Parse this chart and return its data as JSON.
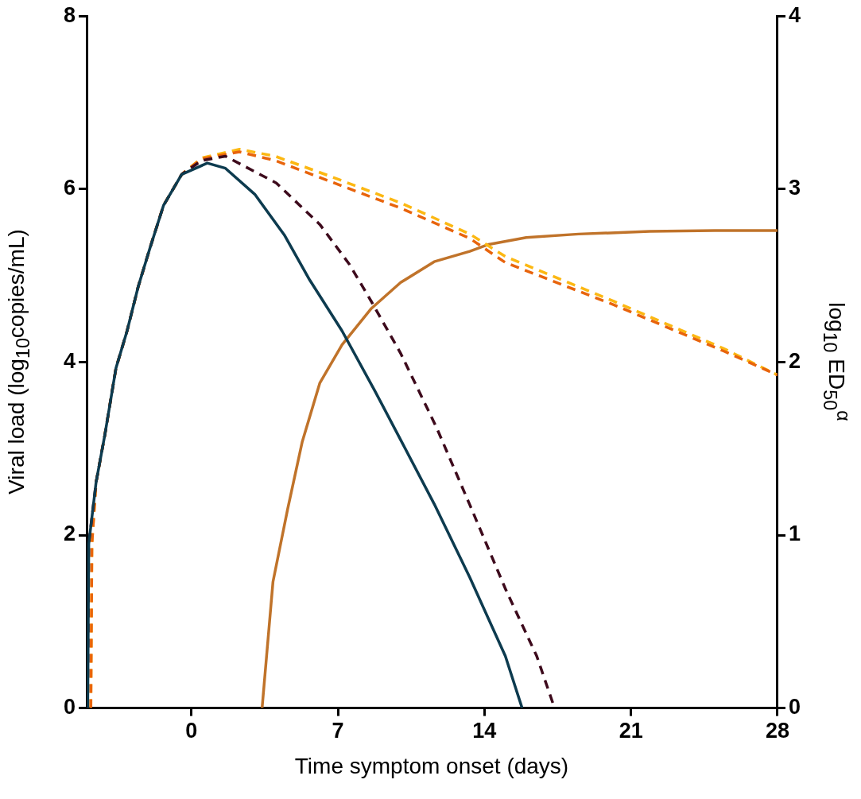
{
  "chart_data": {
    "type": "line",
    "xlabel": "Time symptom onset (days)",
    "ylabel": "Viral load (log$_{10}$copies/mL)",
    "y2label": "log$_{10}$ ED$_{50}$$^{α}$",
    "xlim": [
      -5,
      28
    ],
    "xticks": [
      0,
      7,
      14,
      21,
      28
    ],
    "ylim": [
      0,
      8
    ],
    "yticks": [
      0,
      2,
      4,
      6,
      8
    ],
    "y2lim": [
      0,
      4
    ],
    "y2ticks": [
      0,
      1,
      2,
      3,
      4
    ],
    "series": [
      {
        "color": "#0d3b4f",
        "line_style": "solid",
        "x": [
          -4.95,
          -4.9,
          -4.55,
          -4.13,
          -3.6,
          -3.07,
          -2.54,
          -2.0,
          -1.33,
          -0.46,
          0.76,
          1.63,
          3.03,
          4.44,
          5.65,
          7.2,
          8.76,
          10.0,
          11.6,
          13.3,
          15.0,
          15.8
        ],
        "values": [
          0,
          1.9,
          2.61,
          3.16,
          3.93,
          4.36,
          4.87,
          5.3,
          5.81,
          6.17,
          6.3,
          6.24,
          5.94,
          5.47,
          4.95,
          4.36,
          3.67,
          3.1,
          2.36,
          1.51,
          0.6,
          0
        ]
      },
      {
        "color": "#3d0a1c",
        "line_style": "dashed",
        "x": [
          -4.95,
          -4.9,
          -4.55,
          -4.13,
          -3.6,
          -3.07,
          -2.54,
          -2.0,
          -1.33,
          -0.46,
          0.5,
          1.63,
          4.06,
          6.14,
          7.55,
          8.6,
          10.0,
          11.7,
          13.3,
          15.0,
          16.5,
          17.35
        ],
        "values": [
          0,
          1.9,
          2.61,
          3.16,
          3.93,
          4.36,
          4.87,
          5.3,
          5.81,
          6.17,
          6.33,
          6.38,
          6.07,
          5.59,
          5.13,
          4.7,
          4.1,
          3.25,
          2.35,
          1.38,
          0.6,
          0
        ]
      },
      {
        "color": "#e8640c",
        "line_style": "dashed",
        "x": [
          -4.8,
          -4.75,
          -4.55,
          -4.13,
          -3.6,
          -3.07,
          -2.54,
          -2.0,
          -1.33,
          -0.46,
          0.5,
          2.3,
          4.0,
          6.5,
          10.0,
          13.3,
          15.0,
          20.2,
          25.4,
          28
        ],
        "values": [
          0,
          1.9,
          2.61,
          3.16,
          3.93,
          4.36,
          4.87,
          5.3,
          5.81,
          6.17,
          6.35,
          6.43,
          6.33,
          6.1,
          5.78,
          5.43,
          5.15,
          4.66,
          4.13,
          3.85
        ]
      },
      {
        "color": "#fcb813",
        "line_style": "dashed",
        "x": [
          -4.8,
          -4.75,
          -4.55,
          -4.13,
          -3.6,
          -3.07,
          -2.54,
          -2.0,
          -1.33,
          -0.46,
          0.5,
          2.3,
          4.0,
          6.5,
          10.0,
          13.3,
          15.0,
          20.2,
          25.4,
          28
        ],
        "values": [
          0,
          1.9,
          2.61,
          3.16,
          3.93,
          4.36,
          4.87,
          5.3,
          5.81,
          6.17,
          6.36,
          6.46,
          6.38,
          6.16,
          5.84,
          5.48,
          5.22,
          4.7,
          4.16,
          3.85
        ]
      },
      {
        "color": "#c0732a",
        "line_style": "solid",
        "axis": "y2",
        "x": [
          3.38,
          3.9,
          4.6,
          5.3,
          6.14,
          7.2,
          8.6,
          10.0,
          11.6,
          13.3,
          14.2,
          16.0,
          18.5,
          21.9,
          25.0,
          28
        ],
        "values": [
          0,
          0.73,
          1.15,
          1.54,
          1.88,
          2.1,
          2.31,
          2.46,
          2.58,
          2.64,
          2.68,
          2.72,
          2.74,
          2.755,
          2.76,
          2.76
        ]
      }
    ]
  }
}
